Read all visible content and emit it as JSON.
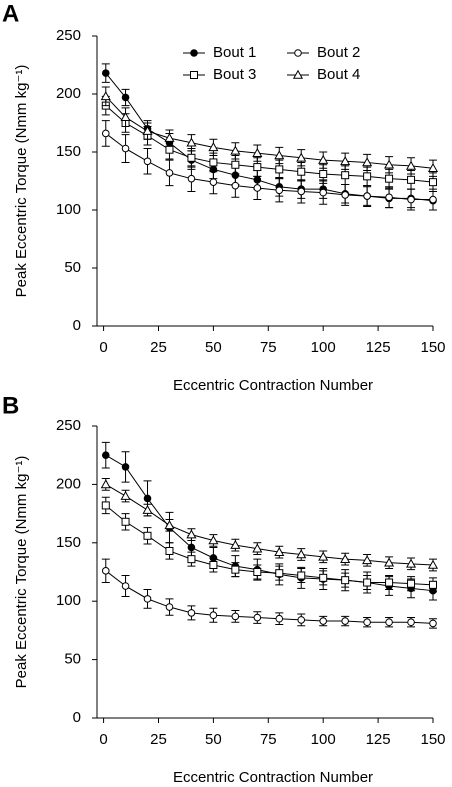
{
  "chart_data": [
    {
      "type": "line",
      "panel_label": "A",
      "xlabel": "Eccentric Contraction Number",
      "ylabel": "Peak Eccentric Torque (Nmm kg⁻¹)",
      "x": [
        1,
        10,
        20,
        30,
        40,
        50,
        60,
        70,
        80,
        90,
        100,
        110,
        120,
        130,
        140,
        150
      ],
      "xlim": [
        -3,
        150
      ],
      "xticks": [
        0,
        25,
        50,
        75,
        100,
        125,
        150
      ],
      "ylim": [
        0,
        250
      ],
      "yticks": [
        0,
        50,
        100,
        150,
        200,
        250
      ],
      "legend": "upper right",
      "series": [
        {
          "name": "Bout 1",
          "marker": "filled-circle",
          "color": "#000000",
          "values": [
            218,
            197,
            170,
            158,
            143,
            135,
            130,
            126,
            120,
            118,
            118,
            114,
            112,
            110,
            110,
            108
          ],
          "errors": [
            8,
            7,
            7,
            8,
            8,
            8,
            8,
            8,
            8,
            8,
            8,
            8,
            8,
            8,
            8,
            8
          ]
        },
        {
          "name": "Bout 2",
          "marker": "open-circle",
          "color": "#000000",
          "values": [
            166,
            153,
            142,
            132,
            127,
            124,
            121,
            119,
            117,
            116,
            115,
            113,
            112,
            111,
            109,
            109
          ],
          "errors": [
            11,
            12,
            11,
            11,
            11,
            10,
            10,
            10,
            10,
            10,
            10,
            9,
            9,
            9,
            9,
            9
          ]
        },
        {
          "name": "Bout 3",
          "marker": "open-square",
          "color": "#000000",
          "values": [
            190,
            175,
            164,
            152,
            145,
            141,
            139,
            137,
            135,
            133,
            131,
            130,
            129,
            127,
            126,
            124
          ],
          "errors": [
            8,
            8,
            8,
            8,
            8,
            8,
            8,
            8,
            8,
            8,
            8,
            8,
            8,
            8,
            8,
            8
          ]
        },
        {
          "name": "Bout 4",
          "marker": "open-triangle",
          "color": "#000000",
          "values": [
            198,
            180,
            168,
            162,
            158,
            154,
            151,
            149,
            147,
            145,
            143,
            142,
            141,
            139,
            138,
            136
          ],
          "errors": [
            8,
            8,
            7,
            7,
            7,
            7,
            7,
            7,
            7,
            7,
            7,
            7,
            7,
            7,
            7,
            7
          ]
        }
      ]
    },
    {
      "type": "line",
      "panel_label": "B",
      "xlabel": "Eccentric Contraction Number",
      "ylabel": "Peak Eccentric Torque (Nmm kg⁻¹)",
      "x": [
        1,
        10,
        20,
        30,
        40,
        50,
        60,
        70,
        80,
        90,
        100,
        110,
        120,
        130,
        140,
        150
      ],
      "xlim": [
        -3,
        150
      ],
      "xticks": [
        0,
        25,
        50,
        75,
        100,
        125,
        150
      ],
      "ylim": [
        0,
        250
      ],
      "yticks": [
        0,
        50,
        100,
        150,
        200,
        250
      ],
      "legend": false,
      "series": [
        {
          "marker": "filled-circle",
          "color": "#000000",
          "values": [
            225,
            215,
            188,
            163,
            146,
            137,
            130,
            127,
            123,
            120,
            119,
            118,
            116,
            113,
            111,
            109
          ],
          "errors": [
            11,
            13,
            15,
            13,
            10,
            9,
            9,
            9,
            9,
            9,
            9,
            9,
            9,
            8,
            8,
            8
          ]
        },
        {
          "marker": "open-circle",
          "color": "#000000",
          "values": [
            126,
            113,
            102,
            95,
            90,
            88,
            87,
            86,
            85,
            84,
            83,
            83,
            82,
            82,
            82,
            81
          ],
          "errors": [
            10,
            9,
            8,
            7,
            6,
            6,
            5,
            5,
            5,
            5,
            4,
            4,
            4,
            4,
            4,
            4
          ]
        },
        {
          "marker": "open-square",
          "color": "#000000",
          "values": [
            182,
            168,
            156,
            143,
            136,
            131,
            127,
            125,
            124,
            122,
            120,
            118,
            116,
            116,
            115,
            114
          ],
          "errors": [
            7,
            7,
            7,
            7,
            6,
            6,
            6,
            6,
            6,
            6,
            6,
            6,
            6,
            6,
            6,
            6
          ]
        },
        {
          "marker": "open-triangle",
          "color": "#000000",
          "values": [
            200,
            190,
            178,
            165,
            157,
            152,
            148,
            145,
            142,
            140,
            138,
            136,
            135,
            133,
            132,
            131
          ],
          "errors": [
            5,
            5,
            5,
            5,
            5,
            5,
            5,
            5,
            5,
            5,
            5,
            5,
            5,
            5,
            5,
            5
          ]
        }
      ]
    }
  ]
}
